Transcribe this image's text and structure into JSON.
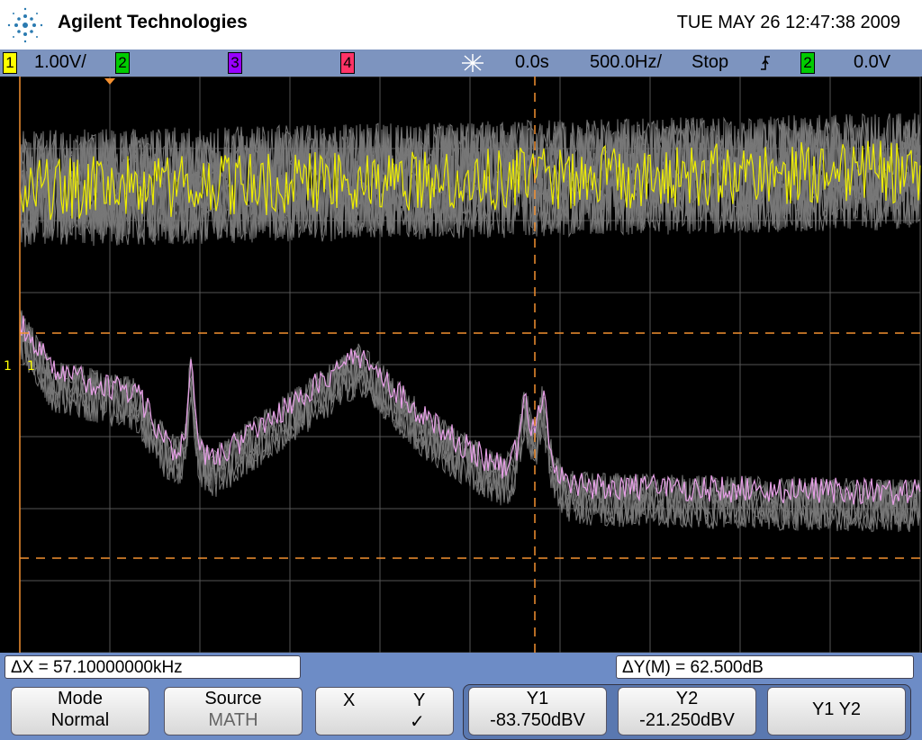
{
  "header": {
    "brand": "Agilent Technologies",
    "datetime": "TUE MAY 26 12:47:38 2009"
  },
  "status": {
    "ch1": "1",
    "scale": "1.00V/",
    "ch2": "2",
    "ch3": "3",
    "ch4": "4",
    "delay": "0.0s",
    "timebase": "500.0Hz/",
    "run": "Stop",
    "trig_ch": "2",
    "trig_level": "0.0V"
  },
  "screen": {
    "ground_marker": "1"
  },
  "readouts": {
    "delta_x": "ΔX = 57.10000000kHz",
    "delta_y": "ΔY(M) = 62.500dB"
  },
  "softkeys": [
    {
      "label": "Mode",
      "value": "Normal"
    },
    {
      "label": "Source",
      "value": "MATH"
    },
    {
      "label": "X",
      "value": "Y",
      "check": "✓"
    },
    {
      "label": "Y1",
      "value": "-83.750dBV"
    },
    {
      "label": "Y2",
      "value": "-21.250dBV"
    },
    {
      "label": "Y1 Y2"
    }
  ]
}
